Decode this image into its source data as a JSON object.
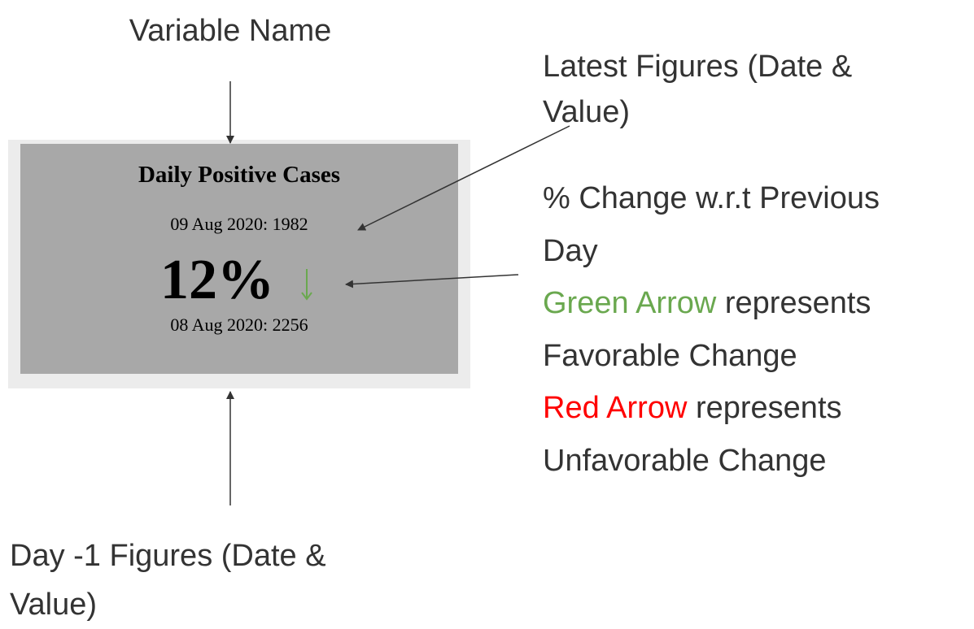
{
  "card": {
    "title": "Daily Positive Cases",
    "latest": "09 Aug 2020: 1982",
    "change": "12%",
    "previous": "08 Aug 2020: 2256"
  },
  "annotations": {
    "variable_name": "Variable Name",
    "latest_figures": [
      "Latest Figures (Date &",
      "Value)"
    ],
    "percent_change": [
      "% Change w.r.t Previous",
      "Day"
    ],
    "green": {
      "highlight": "Green Arrow",
      "rest": " represents",
      "line2": "Favorable Change"
    },
    "red": {
      "highlight": "Red Arrow",
      "rest": " represents",
      "line2": "Unfavorable Change"
    },
    "previous_figures": [
      "Day -1 Figures (Date &",
      "Value)"
    ]
  }
}
